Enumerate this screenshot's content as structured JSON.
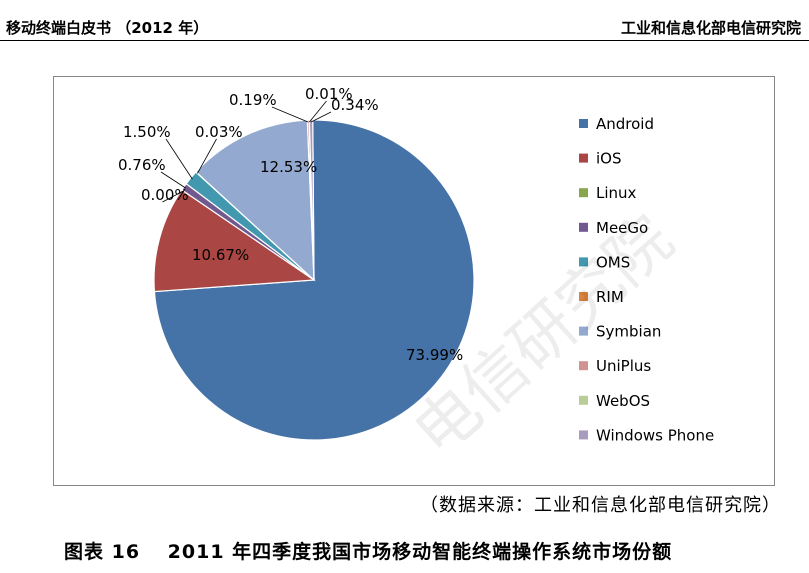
{
  "header": {
    "left": "移动终端白皮书 （2012 年）",
    "right": "工业和信息化部电信研究院"
  },
  "source_note": "（数据来源：工业和信息化部电信研究院）",
  "figure_caption": "图表 16　 2011 年四季度我国市场移动智能终端操作系统市场份额",
  "watermark": "电信研究院",
  "chart_data": {
    "type": "pie",
    "legend_position": "right",
    "slices": [
      {
        "name": "Android",
        "value": 73.99,
        "label": "73.99%",
        "color": "#4572A7"
      },
      {
        "name": "iOS",
        "value": 10.67,
        "label": "10.67%",
        "color": "#AA4643"
      },
      {
        "name": "Linux",
        "value": 0.0,
        "label": "0.00%",
        "color": "#89A54E"
      },
      {
        "name": "MeeGo",
        "value": 0.76,
        "label": "0.76%",
        "color": "#71588F"
      },
      {
        "name": "OMS",
        "value": 1.5,
        "label": "1.50%",
        "color": "#4198AF"
      },
      {
        "name": "RIM",
        "value": 0.03,
        "label": "0.03%",
        "color": "#DB843D"
      },
      {
        "name": "Symbian",
        "value": 12.53,
        "label": "12.53%",
        "color": "#93A9CF"
      },
      {
        "name": "UniPlus",
        "value": 0.19,
        "label": "0.19%",
        "color": "#D19392"
      },
      {
        "name": "WebOS",
        "value": 0.01,
        "label": "0.01%",
        "color": "#B9CD96"
      },
      {
        "name": "Windows Phone",
        "value": 0.34,
        "label": "0.34%",
        "color": "#A99BBD"
      }
    ]
  }
}
